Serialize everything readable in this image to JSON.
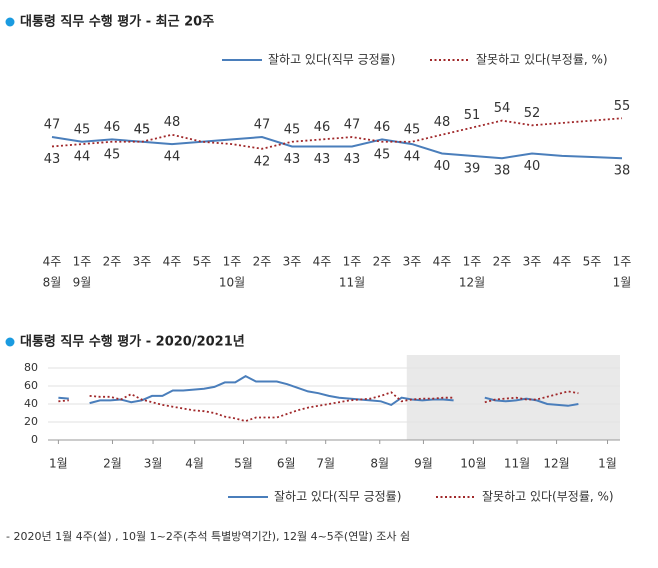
{
  "chart_data": [
    {
      "type": "line",
      "title": "대통령 직무 수행 평가 - 최근 20주",
      "categories": [
        "4주",
        "1주",
        "2주",
        "3주",
        "4주",
        "5주",
        "1주",
        "2주",
        "3주",
        "4주",
        "1주",
        "2주",
        "3주",
        "4주",
        "1주",
        "2주",
        "3주",
        "4주",
        "5주",
        "1주"
      ],
      "months": [
        "8월",
        "9월",
        null,
        null,
        null,
        null,
        "10월",
        null,
        null,
        null,
        "11월",
        null,
        null,
        null,
        "12월",
        null,
        null,
        null,
        null,
        "1월"
      ],
      "ylim": [
        30,
        70
      ],
      "series": [
        {
          "name": "잘하고 있다(직무 긍정률)",
          "color": "#4a7ebb",
          "style": "solid",
          "values": [
            47,
            45,
            46,
            45,
            44,
            45,
            46,
            47,
            43,
            43,
            43,
            46,
            44,
            40,
            39,
            38,
            40,
            39,
            38.5,
            38
          ],
          "value_labels": [
            "47",
            "45",
            "46",
            "45",
            "44",
            null,
            null,
            "47",
            "43",
            "43",
            "43",
            "46",
            "44",
            "40",
            "39",
            "38",
            "40",
            null,
            null,
            "38"
          ]
        },
        {
          "name": "잘못하고 있다(부정률, %)",
          "color": "#a0282a",
          "style": "dotted",
          "values": [
            43,
            44,
            45,
            45,
            48,
            45,
            44,
            42,
            45,
            46,
            47,
            45,
            45,
            48,
            51,
            54,
            52,
            53,
            54,
            55
          ],
          "value_labels": [
            "43",
            "44",
            "45",
            "45",
            "48",
            null,
            null,
            "42",
            "45",
            "46",
            "47",
            "45",
            "45",
            "48",
            "51",
            "54",
            "52",
            null,
            null,
            "55"
          ]
        }
      ]
    },
    {
      "type": "line",
      "title": "대통령 직무 수행 평가 - 2020/2021년",
      "x": [
        1,
        2,
        3,
        4,
        5,
        6,
        7,
        8,
        9,
        10,
        11,
        12,
        13,
        14,
        15,
        16,
        17,
        18,
        19,
        20,
        21,
        22,
        23,
        24,
        25,
        26,
        27,
        28,
        29,
        30,
        31,
        32,
        33,
        34,
        35,
        36,
        37,
        38,
        39,
        40,
        41,
        42,
        43,
        44,
        45,
        46,
        47,
        48,
        49,
        50,
        51,
        52,
        53,
        54
      ],
      "xlim": [
        0,
        55
      ],
      "xticks": [
        {
          "value": 1.0,
          "label": "1월"
        },
        {
          "value": 6.2,
          "label": "2월"
        },
        {
          "value": 10.1,
          "label": "3월"
        },
        {
          "value": 14.1,
          "label": "4월"
        },
        {
          "value": 18.8,
          "label": "5월"
        },
        {
          "value": 22.9,
          "label": "6월"
        },
        {
          "value": 26.7,
          "label": "7월"
        },
        {
          "value": 31.9,
          "label": "8월"
        },
        {
          "value": 36.1,
          "label": "9월"
        },
        {
          "value": 40.9,
          "label": "10월"
        },
        {
          "value": 45.1,
          "label": "11월"
        },
        {
          "value": 48.9,
          "label": "12월"
        },
        {
          "value": 53.8,
          "label": "1월"
        }
      ],
      "ylim": [
        0,
        80
      ],
      "yticks": [
        0,
        20,
        40,
        60,
        80
      ],
      "grid": true,
      "highlight_range": [
        34.5,
        55
      ],
      "series": [
        {
          "name": "잘하고 있다(직무 긍정률)",
          "color": "#4a7ebb",
          "style": "solid",
          "values": [
            47,
            46,
            null,
            41,
            44,
            44,
            45,
            42,
            44,
            49,
            49,
            55,
            55,
            56,
            57,
            59,
            64,
            64,
            71,
            65,
            65,
            65,
            62,
            58,
            54,
            52,
            49,
            47,
            46,
            45,
            44,
            43,
            39,
            47,
            45,
            44,
            45,
            45,
            44,
            null,
            null,
            47,
            44,
            43,
            44,
            46,
            44,
            40,
            39,
            38,
            40,
            null,
            null,
            38
          ]
        },
        {
          "name": "잘못하고 있다(부정률, %)",
          "color": "#a0282a",
          "style": "dotted",
          "values": [
            43,
            44,
            null,
            49,
            48,
            48,
            45,
            51,
            45,
            42,
            39,
            37,
            35,
            33,
            32,
            30,
            26,
            24,
            21,
            25,
            25,
            25,
            29,
            33,
            36,
            38,
            40,
            42,
            44,
            45,
            46,
            49,
            53,
            43,
            45,
            46,
            46,
            47,
            47,
            null,
            null,
            42,
            45,
            46,
            47,
            45,
            45,
            48,
            51,
            54,
            52,
            null,
            null,
            55
          ]
        }
      ]
    }
  ],
  "footnote": "- 2020년 1월 4주(설) , 10월 1~2주(추석 특별방역기간), 12월 4~5주(연말) 조사 쉼"
}
